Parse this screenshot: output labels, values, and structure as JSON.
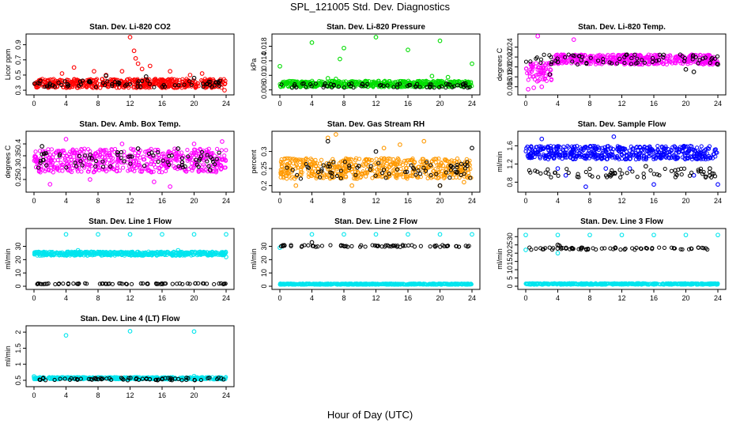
{
  "figure": {
    "title": "SPL_121005  Std. Dev. Diagnostics",
    "x_caption": "Hour of Day (UTC)"
  },
  "chart_data": [
    {
      "type": "scatter",
      "title": "Stan. Dev. Li-820 CO2",
      "ylabel": "Licor ppm",
      "xlim": [
        0,
        24
      ],
      "ylim": [
        0.28,
        1.0
      ],
      "x_ticks": [
        0,
        4,
        8,
        12,
        16,
        20,
        24
      ],
      "y_ticks": [
        0.3,
        0.5,
        0.7,
        0.9
      ],
      "series": [
        {
          "color": "#ff0000",
          "band": [
            0.33,
            0.45
          ],
          "outliers": [
            [
              3.5,
              0.52
            ],
            [
              5,
              0.6
            ],
            [
              7.5,
              0.55
            ],
            [
              9,
              0.5
            ],
            [
              11,
              0.55
            ],
            [
              12,
              1.0
            ],
            [
              12.5,
              0.82
            ],
            [
              12.7,
              0.72
            ],
            [
              13,
              0.65
            ],
            [
              13.5,
              0.58
            ],
            [
              14.5,
              0.62
            ],
            [
              17,
              0.55
            ],
            [
              19.5,
              0.5
            ],
            [
              21,
              0.52
            ],
            [
              23.8,
              0.3
            ]
          ]
        },
        {
          "color": "#000000",
          "band": [
            0.34,
            0.43
          ],
          "outliers": [
            [
              9,
              0.49
            ],
            [
              14,
              0.48
            ],
            [
              20,
              0.46
            ]
          ]
        }
      ]
    },
    {
      "type": "scatter",
      "title": "Stan. Dev. Li-820 Pressure",
      "ylabel": "kPa",
      "xlim": [
        0,
        24
      ],
      "ylim": [
        0.0055,
        0.0205
      ],
      "x_ticks": [
        0,
        4,
        8,
        12,
        16,
        20,
        24
      ],
      "y_ticks": [
        0.006,
        0.01,
        0.014,
        0.018
      ],
      "series": [
        {
          "color": "#00dd00",
          "band": [
            0.0068,
            0.0085
          ],
          "outliers": [
            [
              0,
              0.0125
            ],
            [
              4,
              0.019
            ],
            [
              6,
              0.0092
            ],
            [
              7,
              0.009
            ],
            [
              7.5,
              0.0145
            ],
            [
              8,
              0.0175
            ],
            [
              12,
              0.0205
            ],
            [
              16,
              0.017
            ],
            [
              19,
              0.0098
            ],
            [
              20,
              0.0195
            ],
            [
              21,
              0.0095
            ],
            [
              24,
              0.0132
            ]
          ]
        },
        {
          "color": "#000000",
          "band": [
            0.0066,
            0.0078
          ],
          "outliers": []
        }
      ]
    },
    {
      "type": "scatter",
      "title": "Stan. Dev. Li-820 Temp.",
      "ylabel": "degrees C",
      "xlim": [
        0,
        24
      ],
      "ylim": [
        0.015,
        0.026
      ],
      "x_ticks": [
        0,
        4,
        8,
        12,
        16,
        20,
        24
      ],
      "y_ticks": [
        0.016,
        0.018,
        0.02,
        0.022,
        0.024
      ],
      "series": [
        {
          "color": "#ff00ff",
          "band": [
            0.0205,
            0.0225
          ],
          "early": [
            [
              0,
              3.5
            ],
            [
              0.017,
              0.021
            ]
          ],
          "outliers": [
            [
              0.3,
              0.0155
            ],
            [
              1,
              0.0158
            ],
            [
              2,
              0.016
            ],
            [
              1.5,
              0.0262
            ],
            [
              3,
              0.0185
            ],
            [
              6,
              0.0255
            ]
          ]
        },
        {
          "color": "#000000",
          "band": [
            0.0205,
            0.0225
          ],
          "outliers": [
            [
              3,
              0.0185
            ],
            [
              4,
              0.021
            ],
            [
              20,
              0.0195
            ],
            [
              21,
              0.019
            ],
            [
              24,
              0.0205
            ]
          ]
        }
      ]
    },
    {
      "type": "scatter",
      "title": "Stan. Dev. Amb. Box Temp.",
      "ylabel": "degrees C",
      "xlim": [
        0,
        24
      ],
      "ylim": [
        0.21,
        0.44
      ],
      "x_ticks": [
        0,
        4,
        8,
        12,
        16,
        20,
        24
      ],
      "y_ticks": [
        0.25,
        0.3,
        0.35,
        0.4
      ],
      "series": [
        {
          "color": "#ff00ff",
          "band": [
            0.28,
            0.38
          ],
          "outliers": [
            [
              2,
              0.23
            ],
            [
              4,
              0.42
            ],
            [
              7,
              0.25
            ],
            [
              11,
              0.4
            ],
            [
              15,
              0.24
            ],
            [
              17,
              0.22
            ],
            [
              20,
              0.4
            ],
            [
              23.5,
              0.41
            ]
          ]
        },
        {
          "color": "#000000",
          "band": [
            0.3,
            0.37
          ],
          "outliers": [
            [
              1,
              0.39
            ],
            [
              13,
              0.38
            ],
            [
              18,
              0.38
            ],
            [
              22,
              0.29
            ]
          ]
        }
      ]
    },
    {
      "type": "scatter",
      "title": "Stan. Dev. Gas Stream RH",
      "ylabel": "percent",
      "xlim": [
        0,
        24
      ],
      "ylim": [
        0.19,
        0.35
      ],
      "x_ticks": [
        0,
        4,
        8,
        12,
        16,
        20,
        24
      ],
      "y_ticks": [
        0.2,
        0.25,
        0.3
      ],
      "series": [
        {
          "color": "#ff9900",
          "band": [
            0.22,
            0.28
          ],
          "outliers": [
            [
              2,
              0.2
            ],
            [
              6,
              0.34
            ],
            [
              7,
              0.35
            ],
            [
              9,
              0.2
            ],
            [
              13,
              0.31
            ],
            [
              15,
              0.32
            ],
            [
              18,
              0.33
            ],
            [
              20,
              0.2
            ],
            [
              23,
              0.21
            ]
          ]
        },
        {
          "color": "#000000",
          "band": [
            0.22,
            0.27
          ],
          "outliers": [
            [
              6,
              0.33
            ],
            [
              12,
              0.3
            ],
            [
              20,
              0.2
            ],
            [
              24,
              0.31
            ]
          ]
        }
      ]
    },
    {
      "type": "scatter",
      "title": "Stan. Dev. Sample Flow",
      "ylabel": "ml/min",
      "xlim": [
        0,
        24
      ],
      "ylim": [
        0.65,
        1.85
      ],
      "x_ticks": [
        0,
        4,
        8,
        12,
        16,
        20,
        24
      ],
      "y_ticks": [
        0.8,
        1.2,
        1.6
      ],
      "series": [
        {
          "color": "#0000ff",
          "band": [
            1.3,
            1.6
          ],
          "outliers": [
            [
              2,
              1.75
            ],
            [
              4,
              1.1
            ],
            [
              5,
              0.95
            ],
            [
              7.5,
              0.7
            ],
            [
              10,
              1.1
            ],
            [
              11,
              1.8
            ],
            [
              13,
              1.1
            ],
            [
              16,
              0.75
            ],
            [
              21,
              0.95
            ],
            [
              24,
              0.75
            ]
          ]
        },
        {
          "color": "#000000",
          "band": [
            0.9,
            1.1
          ],
          "outliers": [
            [
              15,
              1.15
            ],
            [
              23,
              1.1
            ]
          ]
        }
      ]
    },
    {
      "type": "scatter",
      "title": "Stan. Dev. Line 1 Flow",
      "ylabel": "ml/min",
      "xlim": [
        0,
        24
      ],
      "ylim": [
        0,
        41
      ],
      "x_ticks": [
        0,
        4,
        8,
        12,
        16,
        20,
        24
      ],
      "y_ticks": [
        0,
        10,
        20,
        30
      ],
      "series": [
        {
          "color": "#00e5ee",
          "band": [
            23,
            26
          ],
          "outliers": [
            [
              4,
              39
            ],
            [
              8,
              39
            ],
            [
              12,
              39
            ],
            [
              16,
              39
            ],
            [
              20,
              39
            ],
            [
              24,
              39
            ],
            [
              5.5,
              27
            ],
            [
              18,
              27
            ],
            [
              24,
              22
            ]
          ]
        },
        {
          "color": "#000000",
          "band": [
            1.5,
            2.2
          ],
          "outliers": []
        }
      ]
    },
    {
      "type": "scatter",
      "title": "Stan. Dev. Line 2 Flow",
      "ylabel": "ml/min",
      "xlim": [
        0,
        24
      ],
      "ylim": [
        0,
        41
      ],
      "x_ticks": [
        0,
        4,
        8,
        12,
        16,
        20,
        24
      ],
      "y_ticks": [
        0,
        10,
        20,
        30
      ],
      "series": [
        {
          "color": "#00e5ee",
          "band": [
            1.2,
            2.0
          ],
          "outliers": [
            [
              4,
              39
            ],
            [
              8,
              39
            ],
            [
              12,
              39
            ],
            [
              16,
              39
            ],
            [
              20,
              39
            ],
            [
              24,
              39
            ],
            [
              0,
              29
            ]
          ]
        },
        {
          "color": "#000000",
          "band": [
            29.5,
            31
          ],
          "outliers": [
            [
              4,
              33
            ]
          ]
        }
      ]
    },
    {
      "type": "scatter",
      "title": "Stan. Dev. Line 3 Flow",
      "ylabel": "ml/min",
      "xlim": [
        0,
        24
      ],
      "ylim": [
        0,
        33
      ],
      "x_ticks": [
        0,
        4,
        8,
        12,
        16,
        20,
        24
      ],
      "y_ticks": [
        0,
        5,
        10,
        15,
        20,
        25,
        30
      ],
      "series": [
        {
          "color": "#00e5ee",
          "band": [
            1.0,
            1.8
          ],
          "outliers": [
            [
              0,
              31
            ],
            [
              4,
              31
            ],
            [
              8,
              31
            ],
            [
              12,
              31
            ],
            [
              16,
              31
            ],
            [
              20,
              31
            ],
            [
              24,
              31
            ],
            [
              0,
              22
            ],
            [
              4,
              20
            ]
          ]
        },
        {
          "color": "#000000",
          "band": [
            22,
            23.5
          ],
          "outliers": [
            [
              4,
              25
            ],
            [
              4.2,
              24.5
            ]
          ]
        }
      ]
    },
    {
      "type": "scatter",
      "title": "Stan. Dev. Line 4 (LT) Flow",
      "ylabel": "ml/min",
      "xlim": [
        0,
        24
      ],
      "ylim": [
        0.4,
        2.1
      ],
      "x_ticks": [
        0,
        4,
        8,
        12,
        16,
        20,
        24
      ],
      "y_ticks": [
        0.5,
        1.0,
        1.5,
        2.0
      ],
      "series": [
        {
          "color": "#00e5ee",
          "band": [
            0.53,
            0.6
          ],
          "outliers": [
            [
              4,
              1.9
            ],
            [
              12,
              2.03
            ],
            [
              20,
              2.02
            ],
            [
              0,
              0.62
            ],
            [
              20,
              0.63
            ]
          ]
        },
        {
          "color": "#000000",
          "band": [
            0.5,
            0.58
          ],
          "outliers": []
        }
      ]
    }
  ]
}
